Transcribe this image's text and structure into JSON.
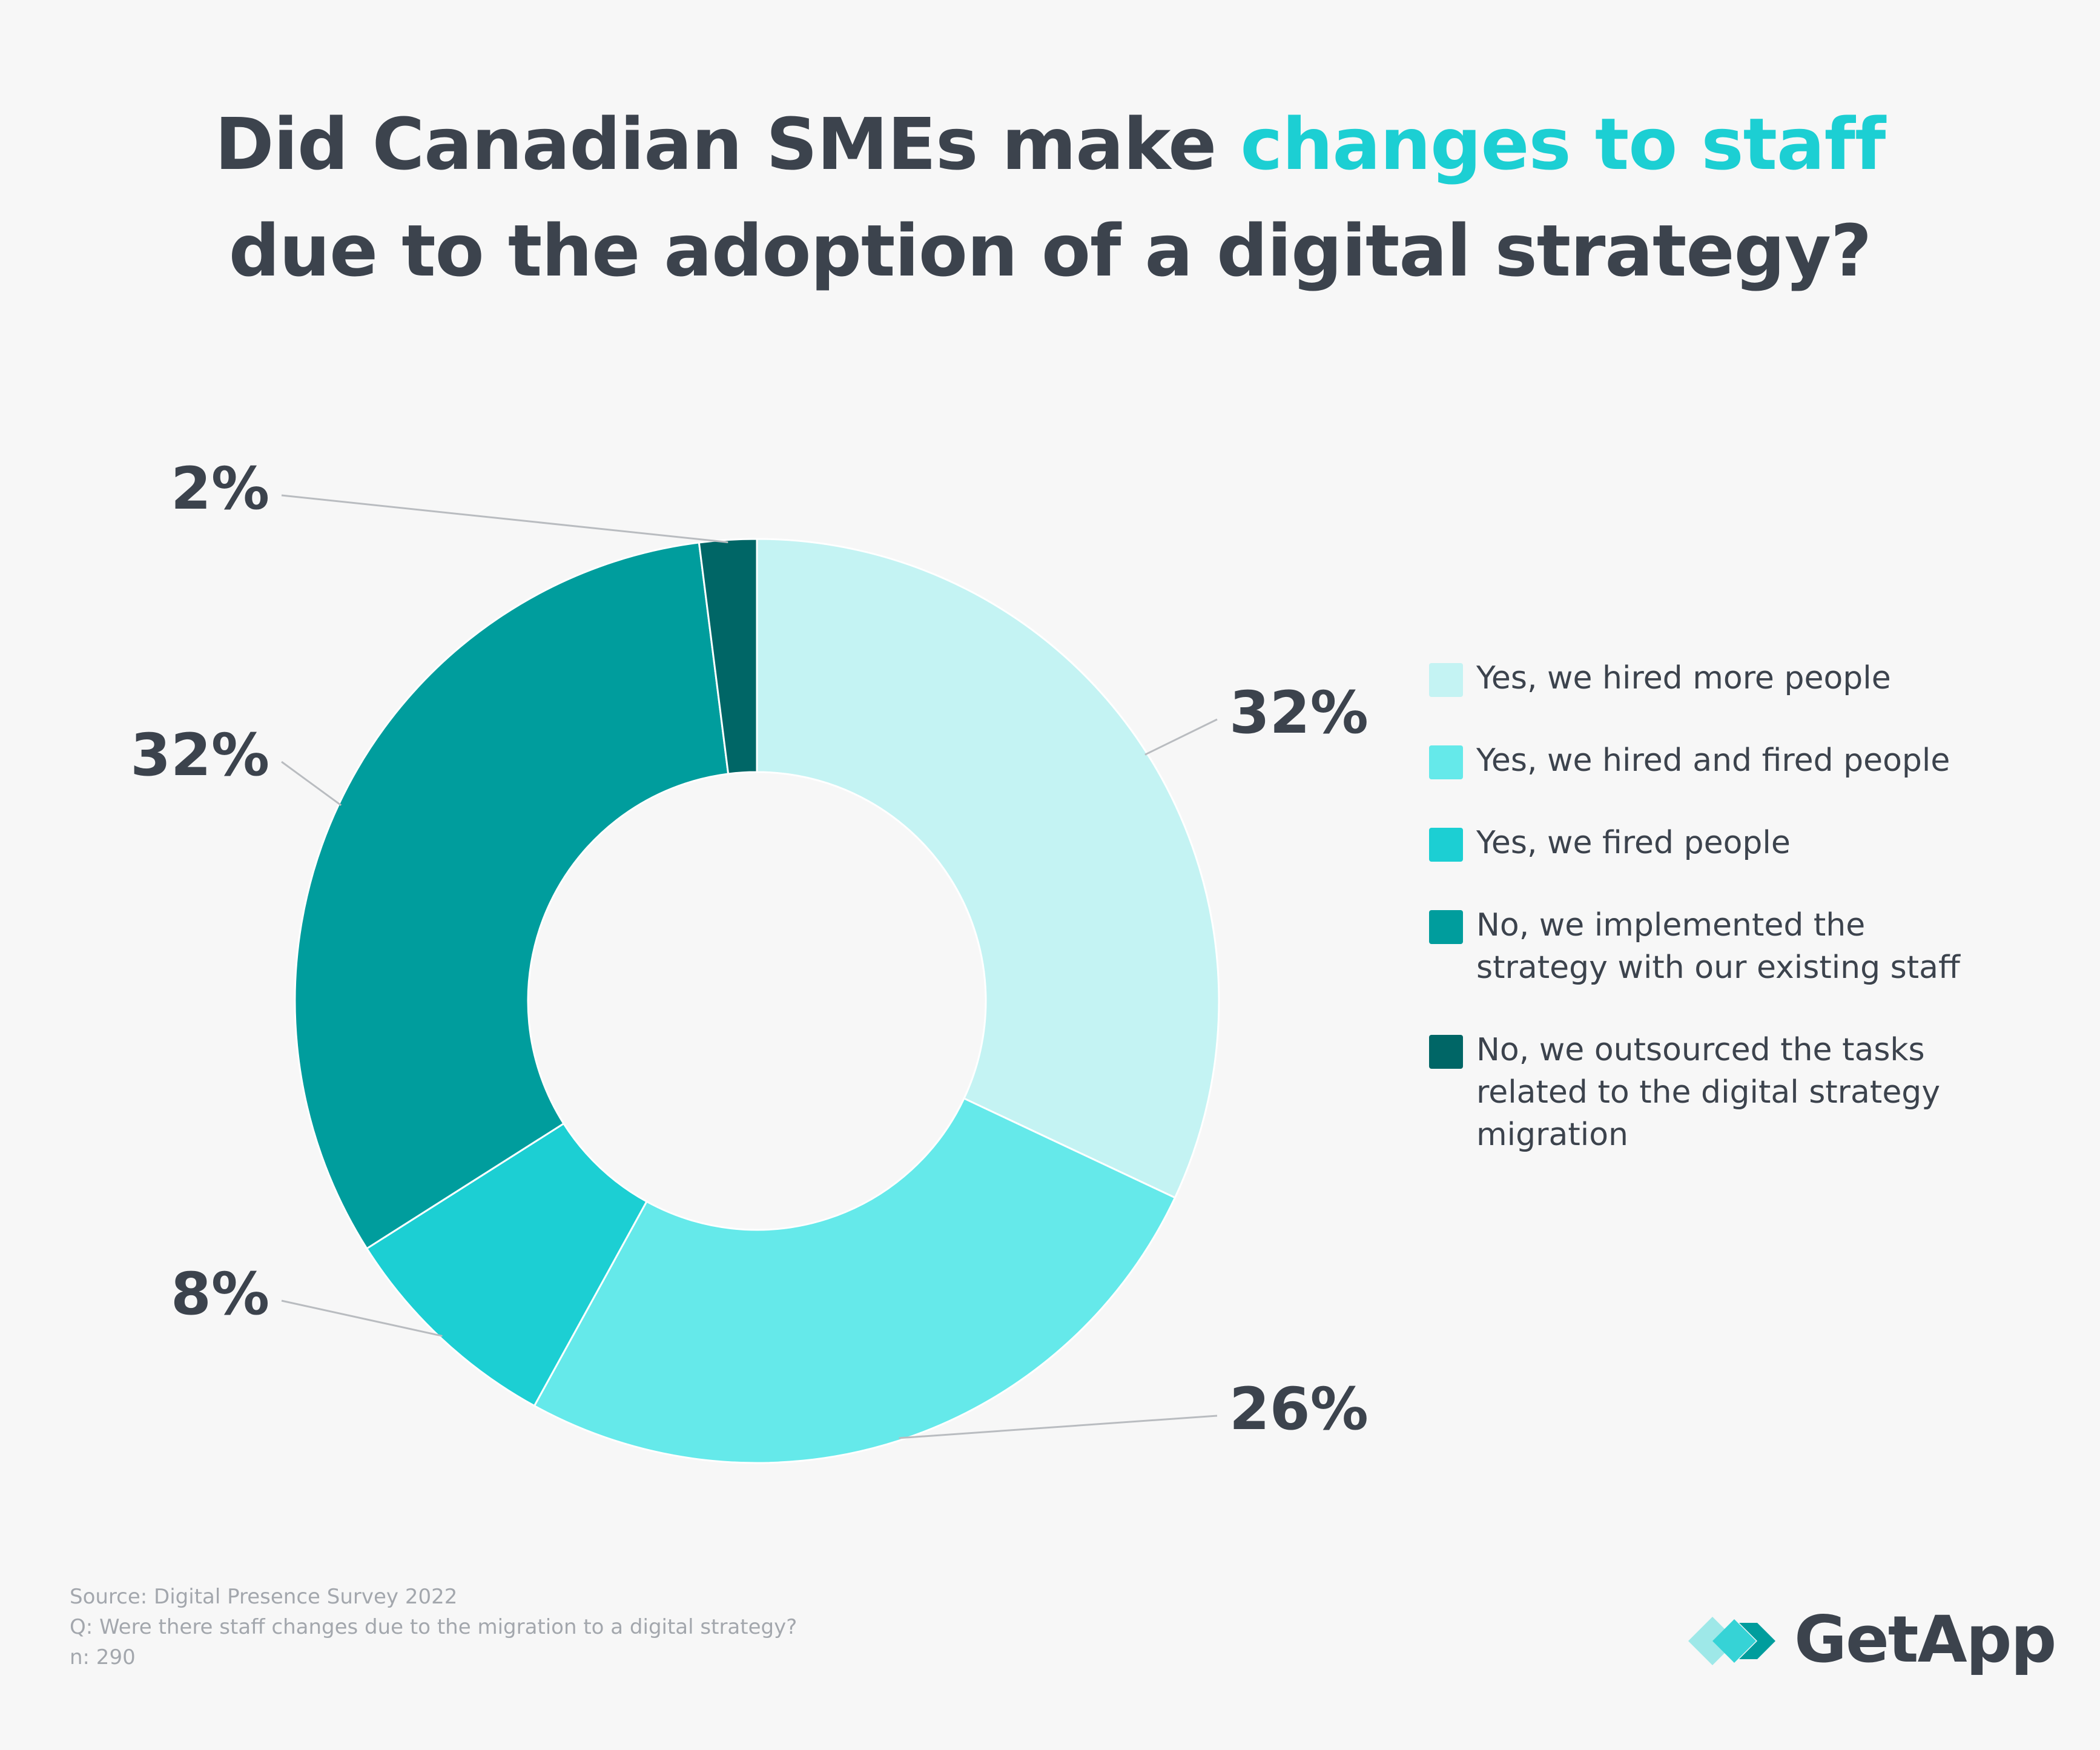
{
  "title": {
    "part1": "Did Canadian SMEs make ",
    "highlight": "changes to staff",
    "line2": "due to the adoption of a digital strategy?"
  },
  "chart_data": {
    "type": "pie",
    "variant": "donut",
    "title": "Did Canadian SMEs make changes to staff due to the adoption of a digital strategy?",
    "categories": [
      "Yes, we hired more people",
      "Yes, we hired and fired people",
      "Yes, we fired people",
      "No, we implemented the strategy with our existing staff",
      "No, we outsourced the tasks related to the digital strategy migration"
    ],
    "values": [
      32,
      26,
      8,
      32,
      2
    ],
    "labels": [
      "32%",
      "26%",
      "8%",
      "32%",
      "2%"
    ],
    "colors": [
      "#c4f3f3",
      "#65e9ea",
      "#1ccfd3",
      "#009d9d",
      "#006666"
    ],
    "legend_position": "right"
  },
  "legend": {
    "items": [
      "Yes, we hired more people",
      "Yes, we hired and fired people",
      "Yes, we fired people",
      "No, we implemented the strategy with our existing staff",
      "No, we outsourced the tasks related to the digital strategy migration"
    ]
  },
  "footer": {
    "source": "Source: Digital Presence Survey 2022",
    "question": "Q: Were there staff changes due to the migration to a digital strategy?",
    "n": "n: 290"
  },
  "logo": {
    "text": "GetApp",
    "colors": [
      "#9ee8e8",
      "#36d3d6",
      "#009d9d"
    ]
  }
}
